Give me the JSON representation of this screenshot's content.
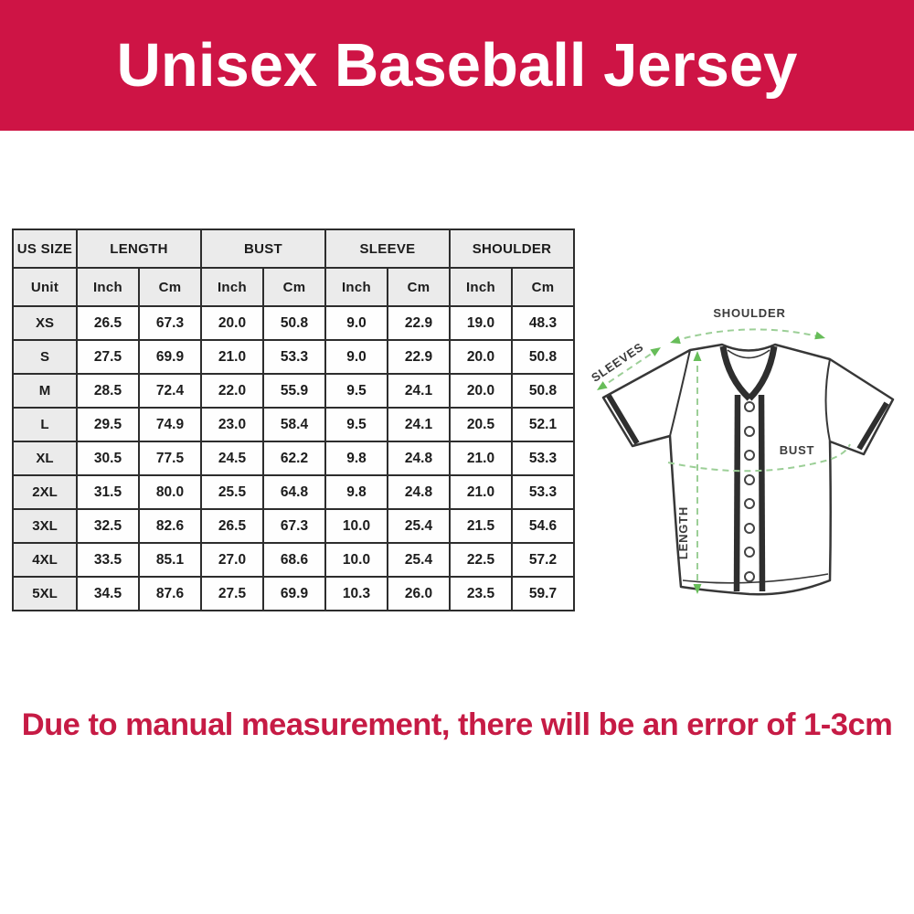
{
  "banner": {
    "title": "Unisex Baseball Jersey",
    "bg_color": "#ce1445",
    "text_color": "#ffffff"
  },
  "size_chart": {
    "group_headers": [
      {
        "label": "US SIZE",
        "span": 1
      },
      {
        "label": "LENGTH",
        "span": 2
      },
      {
        "label": "BUST",
        "span": 2
      },
      {
        "label": "SLEEVE",
        "span": 2
      },
      {
        "label": "SHOULDER",
        "span": 2
      }
    ],
    "unit_header": [
      "Unit",
      "Inch",
      "Cm",
      "Inch",
      "Cm",
      "Inch",
      "Cm",
      "Inch",
      "Cm"
    ],
    "rows": [
      {
        "size": "XS",
        "values": [
          "26.5",
          "67.3",
          "20.0",
          "50.8",
          "9.0",
          "22.9",
          "19.0",
          "48.3"
        ]
      },
      {
        "size": "S",
        "values": [
          "27.5",
          "69.9",
          "21.0",
          "53.3",
          "9.0",
          "22.9",
          "20.0",
          "50.8"
        ]
      },
      {
        "size": "M",
        "values": [
          "28.5",
          "72.4",
          "22.0",
          "55.9",
          "9.5",
          "24.1",
          "20.0",
          "50.8"
        ]
      },
      {
        "size": "L",
        "values": [
          "29.5",
          "74.9",
          "23.0",
          "58.4",
          "9.5",
          "24.1",
          "20.5",
          "52.1"
        ]
      },
      {
        "size": "XL",
        "values": [
          "30.5",
          "77.5",
          "24.5",
          "62.2",
          "9.8",
          "24.8",
          "21.0",
          "53.3"
        ]
      },
      {
        "size": "2XL",
        "values": [
          "31.5",
          "80.0",
          "25.5",
          "64.8",
          "9.8",
          "24.8",
          "21.0",
          "53.3"
        ]
      },
      {
        "size": "3XL",
        "values": [
          "32.5",
          "82.6",
          "26.5",
          "67.3",
          "10.0",
          "25.4",
          "21.5",
          "54.6"
        ]
      },
      {
        "size": "4XL",
        "values": [
          "33.5",
          "85.1",
          "27.0",
          "68.6",
          "10.0",
          "25.4",
          "22.5",
          "57.2"
        ]
      },
      {
        "size": "5XL",
        "values": [
          "34.5",
          "87.6",
          "27.5",
          "69.9",
          "10.3",
          "26.0",
          "23.5",
          "59.7"
        ]
      }
    ],
    "header_bg_color": "#ebebeb",
    "border_color": "#2d2d2d"
  },
  "diagram": {
    "labels": {
      "shoulder": "SHOULDER",
      "sleeves": "SLEEVES",
      "bust": "BUST",
      "length": "LENGTH"
    },
    "dash_color": "#9ccf97",
    "arrow_color": "#67bd59"
  },
  "note": {
    "text": "Due to manual measurement, there will be an error of 1-3cm",
    "color": "#c61b45"
  }
}
